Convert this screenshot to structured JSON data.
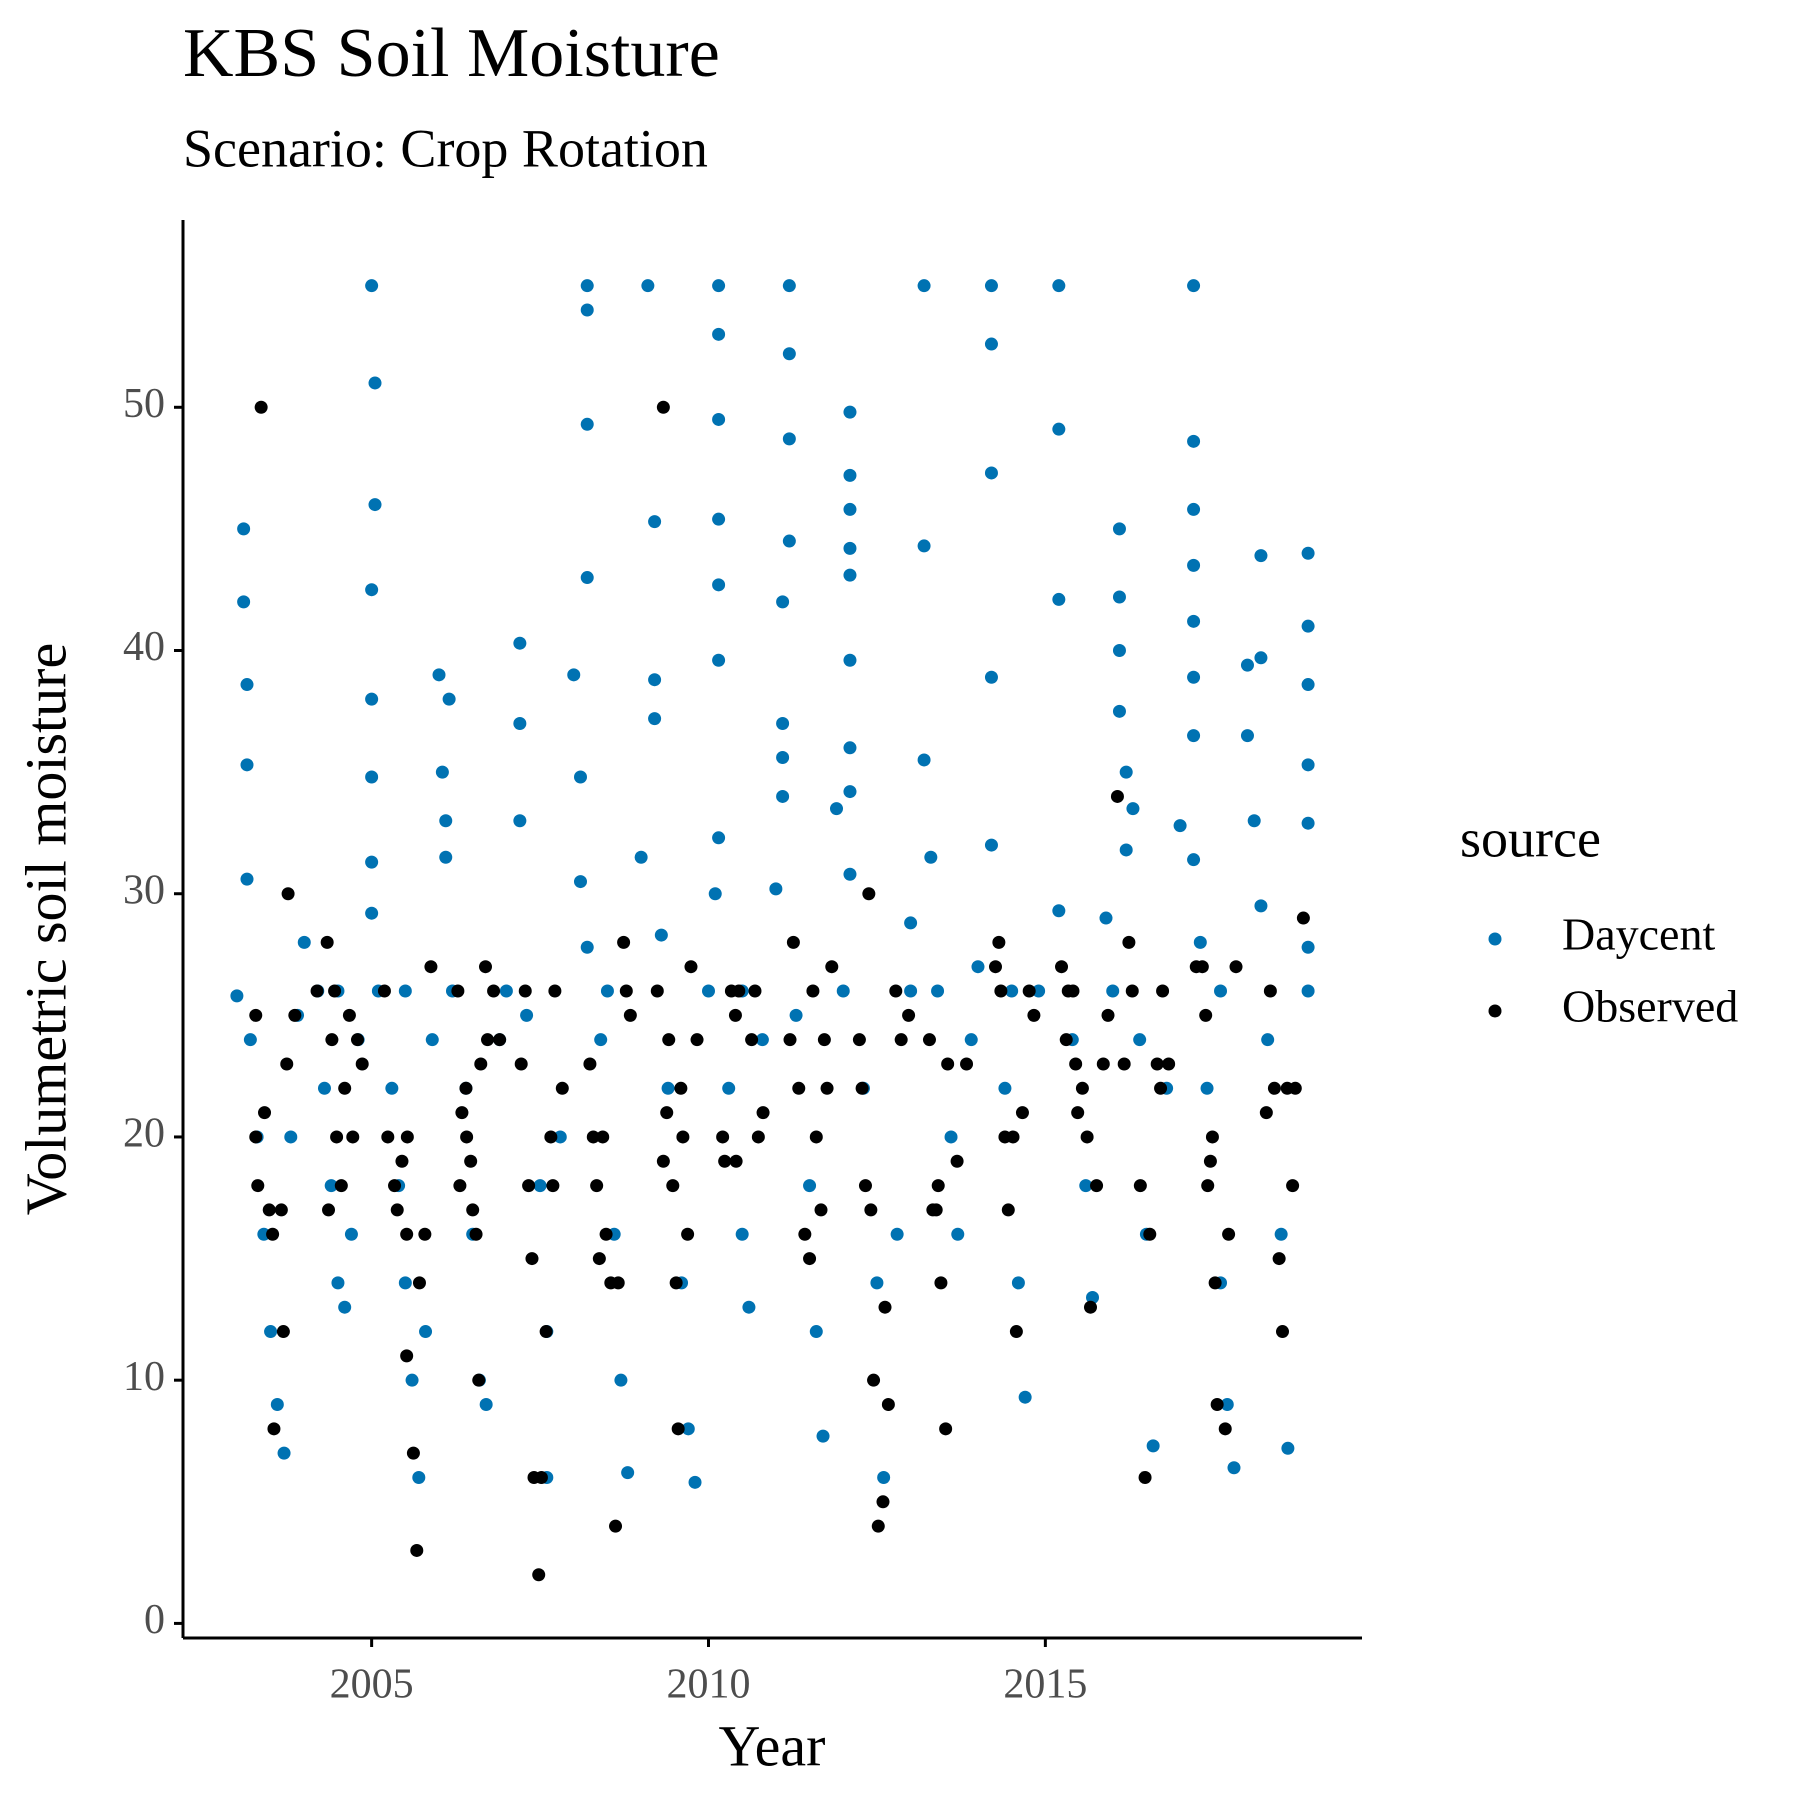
{
  "chart_data": {
    "type": "scatter",
    "title": "KBS Soil Moisture",
    "subtitle": "Scenario: Crop Rotation",
    "x_label": "Year",
    "y_label": "Volumetric soil moisture",
    "legend_title": "source",
    "xlim": [
      2002.2,
      2019.7
    ],
    "xticks": [
      2005,
      2010,
      2015
    ],
    "ylim": [
      -0.6,
      57.7
    ],
    "yticks": [
      0,
      10,
      20,
      30,
      40,
      50
    ],
    "grid": false,
    "legend_position": "right",
    "series": [
      {
        "name": "Daycent",
        "color": "#0072B2",
        "x": [
          2003.0,
          2003.1,
          2003.1,
          2003.15,
          2003.15,
          2003.15,
          2003.2,
          2003.3,
          2003.4,
          2003.5,
          2003.6,
          2003.7,
          2003.8,
          2003.9,
          2004.0,
          2004.2,
          2004.3,
          2004.4,
          2004.5,
          2004.6,
          2004.7,
          2004.8,
          2005.0,
          2005.05,
          2005.05,
          2005.0,
          2005.0,
          2005.0,
          2005.0,
          2005.0,
          2005.1,
          2005.3,
          2005.4,
          2005.5,
          2005.6,
          2005.7,
          2005.8,
          2005.9,
          2006.0,
          2006.05,
          2006.1,
          2006.15,
          2006.1,
          2006.2,
          2006.4,
          2006.5,
          2006.6,
          2006.7,
          2006.9,
          2007.2,
          2007.2,
          2007.2,
          2007.3,
          2007.5,
          2007.6,
          2007.6,
          2007.8,
          2008.0,
          2008.1,
          2008.1,
          2008.2,
          2008.2,
          2008.2,
          2008.2,
          2008.2,
          2008.4,
          2008.6,
          2008.7,
          2008.8,
          2009.0,
          2009.1,
          2009.2,
          2009.2,
          2009.2,
          2009.3,
          2009.4,
          2009.6,
          2009.7,
          2009.8,
          2010.0,
          2010.1,
          2010.15,
          2010.15,
          2010.15,
          2010.15,
          2010.15,
          2010.15,
          2010.15,
          2010.3,
          2010.5,
          2010.6,
          2010.8,
          2011.0,
          2011.2,
          2011.2,
          2011.2,
          2011.2,
          2011.1,
          2011.1,
          2011.1,
          2011.1,
          2011.3,
          2011.5,
          2011.6,
          2011.7,
          2011.9,
          2012.1,
          2012.1,
          2012.1,
          2012.1,
          2012.1,
          2012.1,
          2012.1,
          2012.1,
          2012.1,
          2012.3,
          2012.5,
          2012.6,
          2012.8,
          2013.0,
          2013.2,
          2013.2,
          2013.2,
          2013.3,
          2013.4,
          2013.6,
          2013.7,
          2013.9,
          2014.0,
          2014.2,
          2014.2,
          2014.2,
          2014.2,
          2014.2,
          2014.4,
          2014.6,
          2014.7,
          2014.9,
          2015.2,
          2015.2,
          2015.2,
          2015.2,
          2015.4,
          2015.6,
          2015.7,
          2015.9,
          2016.1,
          2016.1,
          2016.1,
          2016.1,
          2016.2,
          2016.2,
          2016.3,
          2016.4,
          2016.5,
          2016.6,
          2016.8,
          2017.0,
          2017.2,
          2017.2,
          2017.2,
          2017.2,
          2017.2,
          2017.2,
          2017.2,
          2017.2,
          2017.3,
          2017.4,
          2017.6,
          2017.7,
          2017.8,
          2018.0,
          2018.0,
          2018.1,
          2018.2,
          2018.2,
          2018.2,
          2018.3,
          2018.5,
          2018.6,
          2018.9,
          2018.9,
          2018.9,
          2018.9,
          2018.9,
          2018.9,
          2018.9,
          2004.5,
          2005.5,
          2007.0,
          2008.5,
          2010.5,
          2012.0,
          2013.0,
          2014.5,
          2016.0,
          2017.6
        ],
        "values": [
          25.8,
          45,
          42,
          38.6,
          35.3,
          30.6,
          24,
          20,
          16,
          12,
          9,
          7,
          20,
          25,
          28,
          26,
          22,
          18,
          14,
          13,
          16,
          24,
          55,
          51,
          46,
          42.5,
          38,
          34.8,
          31.3,
          29.2,
          26,
          22,
          18,
          14,
          10,
          6,
          12,
          24,
          39,
          35,
          33,
          38,
          31.5,
          26,
          22,
          16,
          10,
          9,
          24,
          40.3,
          37,
          33,
          25,
          18,
          12,
          6,
          20,
          39,
          34.8,
          30.5,
          55,
          54,
          49.3,
          43,
          27.8,
          24,
          16,
          10,
          6.2,
          31.5,
          55,
          45.3,
          38.8,
          37.2,
          28.3,
          22,
          14,
          8,
          5.8,
          26,
          30,
          55,
          53,
          49.5,
          45.4,
          42.7,
          39.6,
          32.3,
          22,
          16,
          13,
          24,
          30.2,
          55,
          52.2,
          48.7,
          44.5,
          42,
          37,
          35.6,
          34,
          25,
          18,
          12,
          7.7,
          33.5,
          49.8,
          47.2,
          45.8,
          44.2,
          43.1,
          39.6,
          36,
          34.2,
          30.8,
          22,
          14,
          6,
          16,
          28.8,
          55,
          44.3,
          35.5,
          31.5,
          26,
          20,
          16,
          24,
          27,
          55,
          52.6,
          47.3,
          38.9,
          32,
          22,
          14,
          9.3,
          26,
          55,
          49.1,
          42.1,
          29.3,
          24,
          18,
          13.4,
          29,
          45,
          42.2,
          40,
          37.5,
          35,
          31.8,
          33.5,
          24,
          16,
          7.3,
          22,
          32.8,
          55,
          48.6,
          45.8,
          43.5,
          41.2,
          38.9,
          36.5,
          31.4,
          28,
          22,
          14,
          9,
          6.4,
          39.4,
          36.5,
          33,
          43.9,
          39.7,
          29.5,
          24,
          16,
          7.2,
          44,
          41,
          38.6,
          35.3,
          32.9,
          27.8,
          26,
          26,
          26,
          26,
          26,
          26,
          26,
          26,
          26,
          26,
          26
        ]
      },
      {
        "name": "Observed",
        "color": "#000000",
        "x": [
          2003.36,
          2003.28,
          2003.28,
          2003.31,
          2003.41,
          2003.48,
          2003.53,
          2003.55,
          2003.66,
          2003.69,
          2003.74,
          2003.76,
          2003.86,
          2004.19,
          2004.34,
          2004.36,
          2004.41,
          2004.45,
          2004.48,
          2004.55,
          2004.6,
          2004.67,
          2004.72,
          2004.79,
          2004.86,
          2005.19,
          2005.24,
          2005.34,
          2005.38,
          2005.45,
          2005.52,
          2005.53,
          2005.52,
          2005.62,
          2005.67,
          2005.71,
          2005.79,
          2005.88,
          2006.28,
          2006.31,
          2006.34,
          2006.4,
          2006.41,
          2006.47,
          2006.5,
          2006.55,
          2006.59,
          2006.62,
          2006.69,
          2006.72,
          2006.81,
          2006.9,
          2007.22,
          2007.28,
          2007.33,
          2007.38,
          2007.41,
          2007.48,
          2007.52,
          2007.59,
          2007.66,
          2007.69,
          2007.72,
          2007.83,
          2008.24,
          2008.29,
          2008.34,
          2008.38,
          2008.43,
          2008.48,
          2008.55,
          2008.62,
          2008.66,
          2008.74,
          2008.78,
          2008.84,
          2009.24,
          2009.33,
          2009.33,
          2009.38,
          2009.41,
          2009.47,
          2009.52,
          2009.55,
          2009.59,
          2009.62,
          2009.69,
          2009.74,
          2009.83,
          2010.21,
          2010.24,
          2010.34,
          2010.4,
          2010.41,
          2010.45,
          2010.64,
          2010.69,
          2010.74,
          2010.81,
          2011.26,
          2011.21,
          2011.34,
          2011.43,
          2011.5,
          2011.55,
          2011.6,
          2011.67,
          2011.72,
          2011.76,
          2011.83,
          2012.24,
          2012.28,
          2012.33,
          2012.38,
          2012.41,
          2012.45,
          2012.52,
          2012.59,
          2012.62,
          2012.67,
          2012.78,
          2012.86,
          2012.97,
          2013.28,
          2013.33,
          2013.38,
          2013.41,
          2013.45,
          2013.52,
          2013.55,
          2013.69,
          2013.83,
          2014.26,
          2014.31,
          2014.34,
          2014.4,
          2014.45,
          2014.52,
          2014.57,
          2014.66,
          2014.76,
          2014.83,
          2015.24,
          2015.31,
          2015.34,
          2015.41,
          2015.45,
          2015.48,
          2015.55,
          2015.62,
          2015.67,
          2015.76,
          2015.86,
          2015.93,
          2016.07,
          2016.17,
          2016.24,
          2016.29,
          2016.41,
          2016.48,
          2016.55,
          2016.66,
          2016.71,
          2016.74,
          2016.83,
          2017.24,
          2017.33,
          2017.38,
          2017.41,
          2017.45,
          2017.48,
          2017.52,
          2017.55,
          2017.67,
          2017.72,
          2017.83,
          2018.28,
          2018.34,
          2018.4,
          2018.47,
          2018.52,
          2018.59,
          2018.67,
          2018.71,
          2018.83
        ],
        "values": [
          50,
          25,
          20,
          18,
          21,
          17,
          16,
          8,
          17,
          12,
          23,
          30,
          25,
          26,
          28,
          17,
          24,
          26,
          20,
          18,
          22,
          25,
          20,
          24,
          23,
          26,
          20,
          18,
          17,
          19,
          16,
          20,
          11,
          7,
          3,
          14,
          16,
          27,
          26,
          18,
          21,
          22,
          20,
          19,
          17,
          16,
          10,
          23,
          27,
          24,
          26,
          24,
          23,
          26,
          18,
          15,
          6,
          2,
          6,
          12,
          20,
          18,
          26,
          22,
          23,
          20,
          18,
          15,
          20,
          16,
          14,
          4,
          14,
          28,
          26,
          25,
          26,
          50,
          19,
          21,
          24,
          18,
          14,
          8,
          22,
          20,
          16,
          27,
          24,
          20,
          19,
          26,
          25,
          19,
          26,
          24,
          26,
          20,
          21,
          28,
          24,
          22,
          16,
          15,
          26,
          20,
          17,
          24,
          22,
          27,
          24,
          22,
          18,
          30,
          17,
          10,
          4,
          5,
          13,
          9,
          26,
          24,
          25,
          24,
          17,
          17,
          18,
          14,
          8,
          23,
          19,
          23,
          27,
          28,
          26,
          20,
          17,
          20,
          12,
          21,
          26,
          25,
          27,
          24,
          26,
          26,
          23,
          21,
          22,
          20,
          13,
          18,
          23,
          25,
          34,
          23,
          28,
          26,
          18,
          6,
          16,
          23,
          22,
          26,
          23,
          27,
          27,
          25,
          18,
          19,
          20,
          14,
          9,
          8,
          16,
          27,
          21,
          26,
          22,
          15,
          12,
          22,
          18,
          22,
          29
        ]
      }
    ]
  }
}
